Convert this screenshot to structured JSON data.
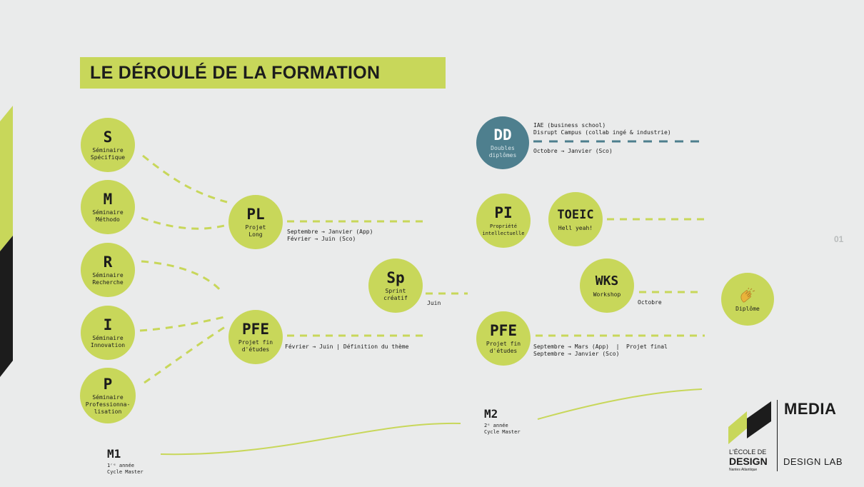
{
  "header": {
    "title": "LE DÉROULÉ DE LA FORMATION"
  },
  "page_number": "01",
  "nodes": {
    "s": {
      "code": "S",
      "sub": "Séminaire\nSpécifique"
    },
    "m": {
      "code": "M",
      "sub": "Séminaire\nMéthodo"
    },
    "r": {
      "code": "R",
      "sub": "Séminaire\nRecherche"
    },
    "i": {
      "code": "I",
      "sub": "Séminaire\nInnovation"
    },
    "p": {
      "code": "P",
      "sub": "Séminaire\nProfessionna-\nlisation"
    },
    "pl": {
      "code": "PL",
      "sub": "Projet\nLong"
    },
    "pfe1": {
      "code": "PFE",
      "sub": "Projet fin\nd'études"
    },
    "sp": {
      "code": "Sp",
      "sub": "Sprint\ncréatif"
    },
    "dd": {
      "code": "DD",
      "sub": "Doubles\ndiplômes"
    },
    "pi": {
      "code": "PI",
      "sub": "Propriété\nintellectuelle"
    },
    "toeic": {
      "code": "TOEIC",
      "sub": "Hell yeah!"
    },
    "wks": {
      "code": "WKS",
      "sub": "Workshop"
    },
    "pfe2": {
      "code": "PFE",
      "sub": "Projet fin\nd'études"
    },
    "diplome": {
      "icon": "clapping-hands-icon",
      "sub": "Diplôme"
    }
  },
  "notes": {
    "pl": "Septembre → Janvier (App)\nFévrier → Juin (Sco)",
    "pfe1": "Février → Juin | Définition du thème",
    "sp": "Juin",
    "dd_top": "IAE (business school)\nDisrupt Campus (collab ingé & industrie)",
    "dd_bottom": "Octobre → Janvier (Sco)",
    "wks": "Octobre",
    "pfe2": "Septembre → Mars (App)  |  Projet final\nSeptembre → Janvier (Sco)"
  },
  "years": {
    "m1": {
      "code": "M1",
      "sub": "1ʳᵉ année\nCycle Master"
    },
    "m2": {
      "code": "M2",
      "sub": "2ᵉ année\nCycle Master"
    }
  },
  "logo": {
    "school_line1": "L'ÉCOLE DE",
    "school_line2": "DESIGN",
    "school_line3": "Nantes Atlantique",
    "media": "MEDIA",
    "design_lab": "DESIGN LAB"
  },
  "colors": {
    "accent": "#c8d75a",
    "blue": "#4e7f8e",
    "dark": "#1c1c1c",
    "background": "#eaebeb"
  }
}
